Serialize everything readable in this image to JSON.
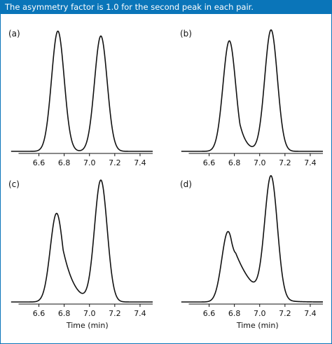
{
  "caption": "The asymmetry factor is 1.0 for the second peak in each pair.",
  "colors": {
    "accent": "#0a75b9",
    "trace": "#111111"
  },
  "chart_data": [
    {
      "type": "line",
      "panel": "(a)",
      "xlabel": "",
      "ylabel": "",
      "xlim": [
        6.5,
        7.5
      ],
      "ylim": [
        0,
        1.05
      ],
      "xticks": [
        6.6,
        6.8,
        7.0,
        7.2,
        7.4
      ],
      "tick_labels": [
        "6.6",
        "6.8",
        "7.0",
        "7.2",
        "7.4"
      ],
      "peaks": [
        {
          "center": 6.75,
          "height": 0.99,
          "width": 0.05,
          "asymmetry": 1.0
        },
        {
          "center": 7.09,
          "height": 0.95,
          "width": 0.05,
          "asymmetry": 1.0
        }
      ]
    },
    {
      "type": "line",
      "panel": "(b)",
      "xlabel": "",
      "ylabel": "",
      "xlim": [
        6.5,
        7.5
      ],
      "ylim": [
        0,
        1.05
      ],
      "xticks": [
        6.6,
        6.8,
        7.0,
        7.2,
        7.4
      ],
      "tick_labels": [
        "6.6",
        "6.8",
        "7.0",
        "7.2",
        "7.4"
      ],
      "peaks": [
        {
          "center": 6.76,
          "height": 0.91,
          "width": 0.05,
          "asymmetry": 1.5
        },
        {
          "center": 7.09,
          "height": 1.0,
          "width": 0.05,
          "asymmetry": 1.0
        }
      ]
    },
    {
      "type": "line",
      "panel": "(c)",
      "xlabel": "Time (min)",
      "ylabel": "",
      "xlim": [
        6.5,
        7.5
      ],
      "ylim": [
        0,
        1.05
      ],
      "xticks": [
        6.6,
        6.8,
        7.0,
        7.2,
        7.4
      ],
      "tick_labels": [
        "6.6",
        "6.8",
        "7.0",
        "7.2",
        "7.4"
      ],
      "peaks": [
        {
          "center": 6.74,
          "height": 0.73,
          "width": 0.05,
          "asymmetry": 2.0
        },
        {
          "center": 7.09,
          "height": 1.0,
          "width": 0.05,
          "asymmetry": 1.0
        }
      ]
    },
    {
      "type": "line",
      "panel": "(d)",
      "xlabel": "Time (min)",
      "ylabel": "",
      "xlim": [
        6.5,
        7.5
      ],
      "ylim": [
        0,
        1.05
      ],
      "xticks": [
        6.6,
        6.8,
        7.0,
        7.2,
        7.4
      ],
      "tick_labels": [
        "6.6",
        "6.8",
        "7.0",
        "7.2",
        "7.4"
      ],
      "peaks": [
        {
          "center": 6.75,
          "height": 0.58,
          "width": 0.05,
          "asymmetry": 3.0
        },
        {
          "center": 7.09,
          "height": 1.0,
          "width": 0.05,
          "asymmetry": 1.0
        }
      ]
    }
  ]
}
